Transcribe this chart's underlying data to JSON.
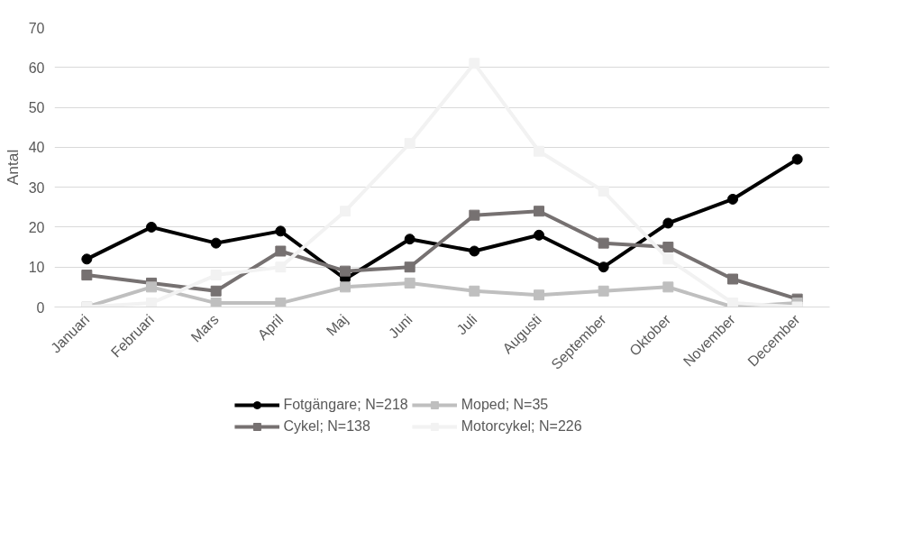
{
  "chart_data": {
    "type": "line",
    "ylabel": "Antal",
    "categories": [
      "Januari",
      "Februari",
      "Mars",
      "April",
      "Maj",
      "Juni",
      "Juli",
      "Augusti",
      "September",
      "Oktober",
      "November",
      "December"
    ],
    "series": [
      {
        "name": "Fotgängare; N=218",
        "color": "#000000",
        "marker": "circle",
        "values": [
          12,
          20,
          16,
          19,
          7,
          17,
          14,
          18,
          10,
          21,
          27,
          37
        ]
      },
      {
        "name": "Cykel; N=138",
        "color": "#767171",
        "marker": "square",
        "values": [
          8,
          6,
          4,
          14,
          9,
          10,
          23,
          24,
          16,
          15,
          7,
          2
        ]
      },
      {
        "name": "Moped; N=35",
        "color": "#bfbfbf",
        "marker": "square",
        "values": [
          0,
          5,
          1,
          1,
          5,
          6,
          4,
          3,
          4,
          5,
          0,
          1
        ]
      },
      {
        "name": "Motorcykel; N=226",
        "color": "#f2f2f2",
        "marker": "square",
        "values": [
          0,
          1,
          8,
          10,
          24,
          41,
          61,
          39,
          29,
          12,
          1,
          0
        ]
      }
    ],
    "ylim": [
      0,
      70
    ],
    "yticks": [
      0,
      10,
      20,
      30,
      40,
      50,
      60,
      70
    ],
    "grid": "y",
    "legend": "bottom",
    "line_style": "solid"
  }
}
